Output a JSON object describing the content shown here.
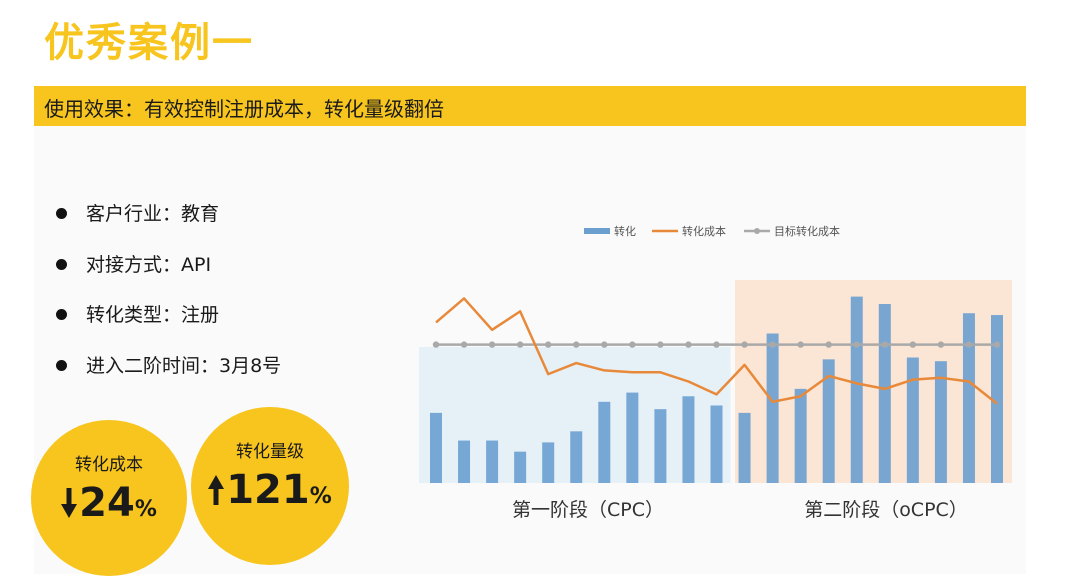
{
  "title": "优秀案例一",
  "banner": "使用效果：有效控制注册成本，转化量级翻倍",
  "bullets": [
    "客户行业：教育",
    "对接方式：API",
    "转化类型：注册",
    "进入二阶时间：3月8号"
  ],
  "stats": [
    {
      "label": "转化成本",
      "direction": "down",
      "value": "24",
      "unit": "%"
    },
    {
      "label": "转化量级",
      "direction": "up",
      "value": "121",
      "unit": "%"
    }
  ],
  "colors": {
    "accent": "#f7c51e",
    "bar": "#6a9fd0",
    "cost_line": "#e8893a",
    "target_line": "#a9a9a9",
    "stage1_bg": "#e6f1f7",
    "stage2_bg": "#fae0cc"
  },
  "chart_data": {
    "type": "bar",
    "legend": [
      "转化",
      "转化成本",
      "目标转化成本"
    ],
    "legend_position": "top",
    "stages": [
      {
        "label": "第一阶段（CPC）",
        "start_index": 0,
        "end_index": 10
      },
      {
        "label": "第二阶段（oCPC）",
        "start_index": 11,
        "end_index": 20
      }
    ],
    "series": [
      {
        "name": "转化",
        "kind": "bar",
        "values": [
          38,
          23,
          23,
          17,
          22,
          28,
          44,
          49,
          40,
          47,
          42,
          38,
          81,
          51,
          67,
          101,
          97,
          68,
          66,
          92,
          91
        ]
      },
      {
        "name": "转化成本",
        "kind": "line",
        "values": [
          87,
          100,
          83,
          93,
          59,
          65,
          61,
          60,
          60,
          55,
          48,
          64,
          44,
          47,
          58,
          54,
          51,
          56,
          57,
          55,
          43
        ]
      },
      {
        "name": "目标转化成本",
        "kind": "line",
        "values": [
          75,
          75,
          75,
          75,
          75,
          75,
          75,
          75,
          75,
          75,
          75,
          75,
          75,
          75,
          75,
          75,
          75,
          75,
          75,
          75,
          75
        ]
      }
    ],
    "ylim": [
      0,
      110
    ],
    "grid": false
  }
}
